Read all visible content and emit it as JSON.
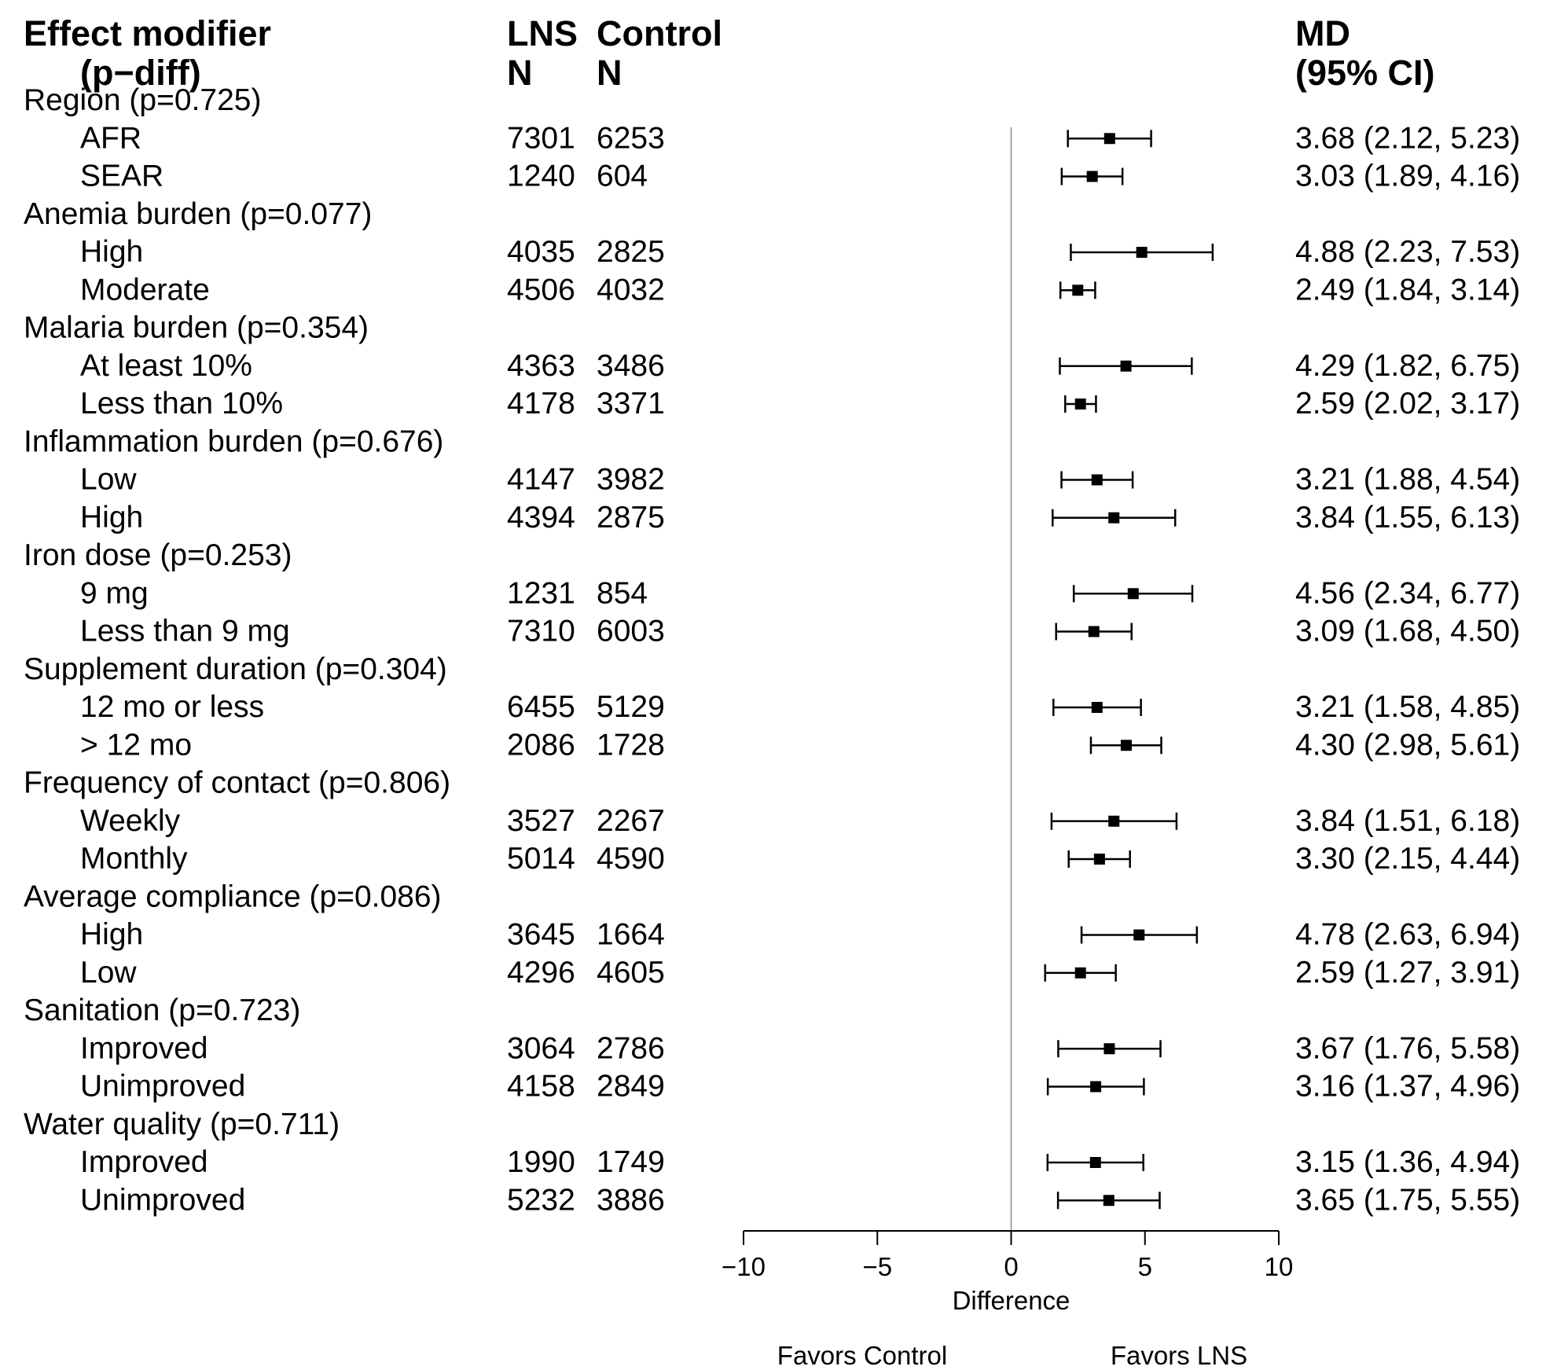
{
  "header": {
    "col_modifier": [
      "Effect modifier",
      "(p−diff)"
    ],
    "col_lns": [
      "LNS",
      "N"
    ],
    "col_control": [
      "Control",
      "N"
    ],
    "col_md": [
      "MD",
      "(95% CI)"
    ]
  },
  "colors": {
    "ink": "#000000",
    "zero_line": "#888888"
  },
  "chart_data": {
    "type": "forest",
    "xlabel": "Difference",
    "xlim": [
      -10,
      10
    ],
    "xticks": [
      -10,
      -5,
      0,
      5,
      10
    ],
    "xtick_labels": [
      "−10",
      "−5",
      "0",
      "5",
      "10"
    ],
    "reference_line": 0,
    "favors_left": "Favors Control",
    "favors_right": "Favors LNS",
    "rows": [
      {
        "kind": "group",
        "label": "Region (p=0.725)"
      },
      {
        "kind": "item",
        "label": "AFR",
        "lns_n": "7301",
        "control_n": "6253",
        "md": 3.68,
        "lo": 2.12,
        "hi": 5.23,
        "ci_text": "3.68 (2.12, 5.23)"
      },
      {
        "kind": "item",
        "label": "SEAR",
        "lns_n": "1240",
        "control_n": "604",
        "md": 3.03,
        "lo": 1.89,
        "hi": 4.16,
        "ci_text": "3.03 (1.89, 4.16)"
      },
      {
        "kind": "group",
        "label": "Anemia burden (p=0.077)"
      },
      {
        "kind": "item",
        "label": "High",
        "lns_n": "4035",
        "control_n": "2825",
        "md": 4.88,
        "lo": 2.23,
        "hi": 7.53,
        "ci_text": "4.88 (2.23, 7.53)"
      },
      {
        "kind": "item",
        "label": "Moderate",
        "lns_n": "4506",
        "control_n": "4032",
        "md": 2.49,
        "lo": 1.84,
        "hi": 3.14,
        "ci_text": "2.49 (1.84, 3.14)"
      },
      {
        "kind": "group",
        "label": "Malaria burden (p=0.354)"
      },
      {
        "kind": "item",
        "label": "At least 10%",
        "lns_n": "4363",
        "control_n": "3486",
        "md": 4.29,
        "lo": 1.82,
        "hi": 6.75,
        "ci_text": "4.29 (1.82, 6.75)"
      },
      {
        "kind": "item",
        "label": "Less than 10%",
        "lns_n": "4178",
        "control_n": "3371",
        "md": 2.59,
        "lo": 2.02,
        "hi": 3.17,
        "ci_text": "2.59 (2.02, 3.17)"
      },
      {
        "kind": "group",
        "label": "Inflammation burden (p=0.676)"
      },
      {
        "kind": "item",
        "label": "Low",
        "lns_n": "4147",
        "control_n": "3982",
        "md": 3.21,
        "lo": 1.88,
        "hi": 4.54,
        "ci_text": "3.21 (1.88, 4.54)"
      },
      {
        "kind": "item",
        "label": "High",
        "lns_n": "4394",
        "control_n": "2875",
        "md": 3.84,
        "lo": 1.55,
        "hi": 6.13,
        "ci_text": "3.84 (1.55, 6.13)"
      },
      {
        "kind": "group",
        "label": "Iron dose (p=0.253)"
      },
      {
        "kind": "item",
        "label": "9 mg",
        "lns_n": "1231",
        "control_n": "854",
        "md": 4.56,
        "lo": 2.34,
        "hi": 6.77,
        "ci_text": "4.56 (2.34, 6.77)"
      },
      {
        "kind": "item",
        "label": "Less than 9 mg",
        "lns_n": "7310",
        "control_n": "6003",
        "md": 3.09,
        "lo": 1.68,
        "hi": 4.5,
        "ci_text": "3.09 (1.68, 4.50)"
      },
      {
        "kind": "group",
        "label": "Supplement duration (p=0.304)"
      },
      {
        "kind": "item",
        "label": "12 mo or less",
        "lns_n": "6455",
        "control_n": "5129",
        "md": 3.21,
        "lo": 1.58,
        "hi": 4.85,
        "ci_text": "3.21 (1.58, 4.85)"
      },
      {
        "kind": "item",
        "label": "> 12 mo",
        "lns_n": "2086",
        "control_n": "1728",
        "md": 4.3,
        "lo": 2.98,
        "hi": 5.61,
        "ci_text": "4.30 (2.98, 5.61)"
      },
      {
        "kind": "group",
        "label": "Frequency of contact (p=0.806)"
      },
      {
        "kind": "item",
        "label": "Weekly",
        "lns_n": "3527",
        "control_n": "2267",
        "md": 3.84,
        "lo": 1.51,
        "hi": 6.18,
        "ci_text": "3.84 (1.51, 6.18)"
      },
      {
        "kind": "item",
        "label": "Monthly",
        "lns_n": "5014",
        "control_n": "4590",
        "md": 3.3,
        "lo": 2.15,
        "hi": 4.44,
        "ci_text": "3.30 (2.15, 4.44)"
      },
      {
        "kind": "group",
        "label": "Average compliance (p=0.086)"
      },
      {
        "kind": "item",
        "label": "High",
        "lns_n": "3645",
        "control_n": "1664",
        "md": 4.78,
        "lo": 2.63,
        "hi": 6.94,
        "ci_text": "4.78 (2.63, 6.94)"
      },
      {
        "kind": "item",
        "label": "Low",
        "lns_n": "4296",
        "control_n": "4605",
        "md": 2.59,
        "lo": 1.27,
        "hi": 3.91,
        "ci_text": "2.59 (1.27, 3.91)"
      },
      {
        "kind": "group",
        "label": "Sanitation (p=0.723)"
      },
      {
        "kind": "item",
        "label": "Improved",
        "lns_n": "3064",
        "control_n": "2786",
        "md": 3.67,
        "lo": 1.76,
        "hi": 5.58,
        "ci_text": "3.67 (1.76, 5.58)"
      },
      {
        "kind": "item",
        "label": "Unimproved",
        "lns_n": "4158",
        "control_n": "2849",
        "md": 3.16,
        "lo": 1.37,
        "hi": 4.96,
        "ci_text": "3.16 (1.37, 4.96)"
      },
      {
        "kind": "group",
        "label": "Water quality (p=0.711)"
      },
      {
        "kind": "item",
        "label": "Improved",
        "lns_n": "1990",
        "control_n": "1749",
        "md": 3.15,
        "lo": 1.36,
        "hi": 4.94,
        "ci_text": "3.15 (1.36, 4.94)"
      },
      {
        "kind": "item",
        "label": "Unimproved",
        "lns_n": "5232",
        "control_n": "3886",
        "md": 3.65,
        "lo": 1.75,
        "hi": 5.55,
        "ci_text": "3.65 (1.75, 5.55)"
      }
    ]
  }
}
